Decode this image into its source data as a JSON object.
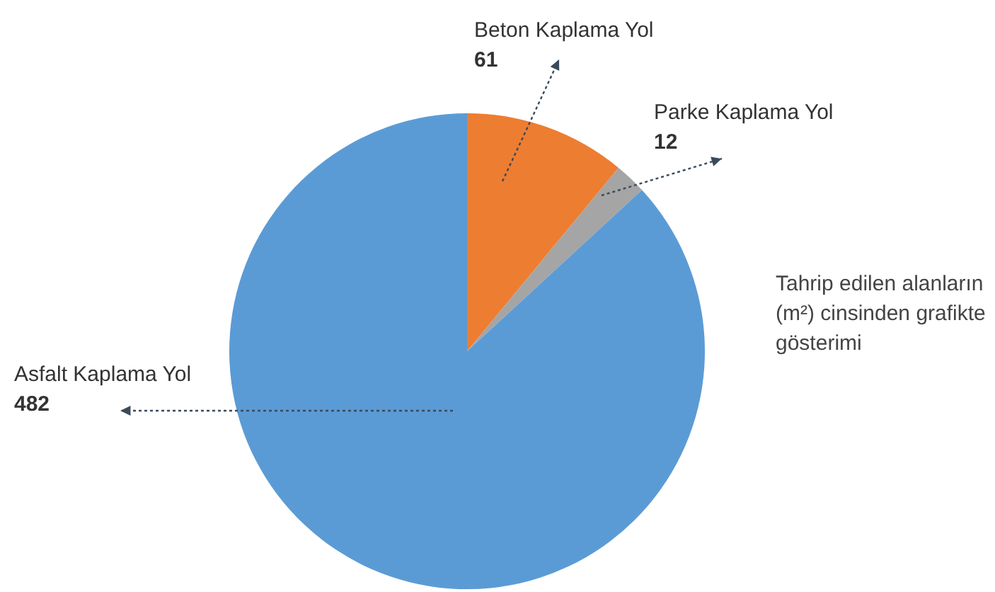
{
  "chart_data": {
    "type": "pie",
    "categories": [
      "Beton Kaplama Yol",
      "Parke Kaplama Yol",
      "Asfalt Kaplama Yol"
    ],
    "values": [
      61,
      12,
      482
    ],
    "colors": [
      "#ed7d31",
      "#a5a5a5",
      "#5b9bd5"
    ],
    "data_labels": true,
    "legend": false,
    "annotations": [
      "Tahrip edilen alanların (m²) cinsinden grafikte gösterimi"
    ]
  }
}
